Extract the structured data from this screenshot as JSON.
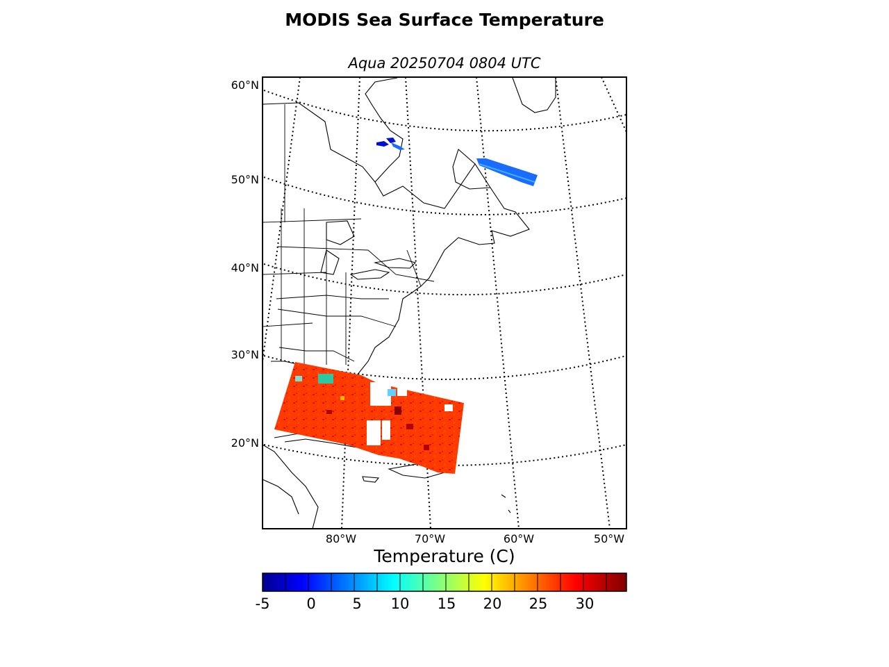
{
  "title": "MODIS Sea Surface Temperature",
  "subtitle": "Aqua 20250704 0804 UTC",
  "map": {
    "projection": "lambert-conformal",
    "extent": {
      "lon_min": -89,
      "lon_max": -48,
      "lat_min": 11,
      "lat_max": 61
    },
    "lat_labels": [
      "60°N",
      "50°N",
      "40°N",
      "30°N",
      "20°N"
    ],
    "lon_labels": [
      "80°W",
      "70°W",
      "60°W",
      "50°W"
    ],
    "graticule_style": "dotted",
    "land_fill": "#ffffff",
    "coastline_color": "#000000"
  },
  "colorbar": {
    "label": "Temperature (C)",
    "colormap": "jet",
    "range": [
      -5,
      34
    ],
    "ticks": [
      "-5",
      "0",
      "5",
      "10",
      "15",
      "20",
      "25",
      "30"
    ]
  },
  "swaths": [
    {
      "region": "Gulf of Mexico / Florida / Bahamas",
      "dominant_temperature_c": 30,
      "color": "#ff3a00"
    },
    {
      "region": "Labrador Sea off Newfoundland",
      "dominant_temperature_c": 3,
      "color": "#1a6cff"
    },
    {
      "region": "Hudson Bay (patch)",
      "dominant_temperature_c": -1,
      "color": "#0010d0"
    }
  ]
}
